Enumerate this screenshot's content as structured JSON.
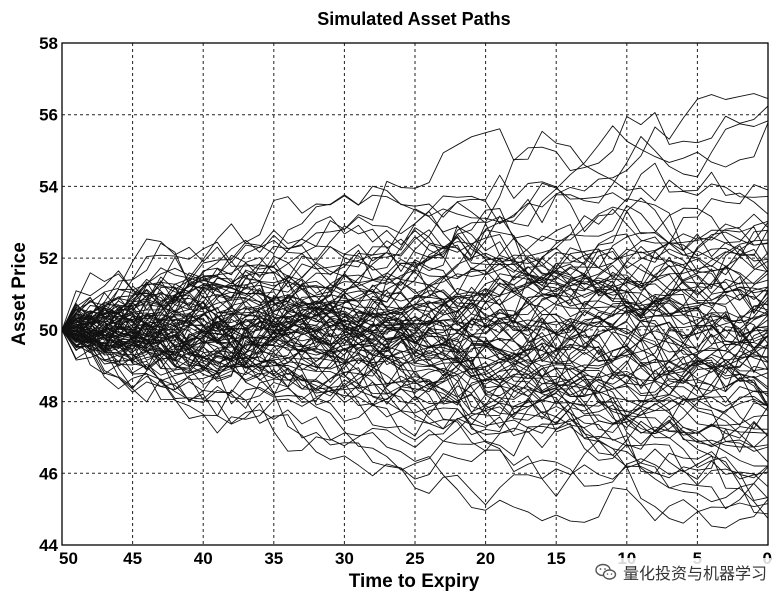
{
  "chart_data": {
    "type": "line",
    "title": "Simulated Asset Paths",
    "xlabel": "Time to Expiry",
    "ylabel": "Asset Price",
    "x_ticks": [
      "50",
      "45",
      "40",
      "35",
      "30",
      "25",
      "20",
      "15",
      "10",
      "5",
      "0"
    ],
    "y_ticks": [
      "44",
      "46",
      "48",
      "50",
      "52",
      "54",
      "56",
      "58"
    ],
    "xlim": [
      50,
      0
    ],
    "ylim": [
      44,
      58
    ],
    "grid": true,
    "legend": "none",
    "series_description": "Approximately 100 simulated geometric Brownian motion asset price paths starting at 50 at time-to-expiry 50 and fanning out to roughly 44.5–56.5 at expiry",
    "start_value": 50,
    "num_paths": 100,
    "num_steps": 50,
    "terminal_min": 44.6,
    "terminal_max": 56.6,
    "line_color": "#111111"
  },
  "watermark": {
    "text": "量化投资与机器学习",
    "icon": "wechat-icon"
  }
}
